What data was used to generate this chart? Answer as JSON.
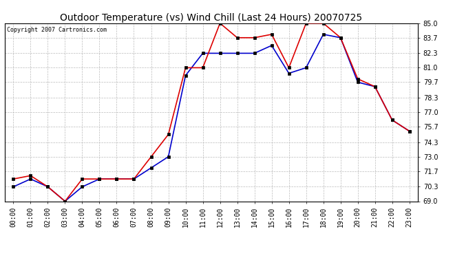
{
  "title": "Outdoor Temperature (vs) Wind Chill (Last 24 Hours) 20070725",
  "copyright": "Copyright 2007 Cartronics.com",
  "hours": [
    "00:00",
    "01:00",
    "02:00",
    "03:00",
    "04:00",
    "05:00",
    "06:00",
    "07:00",
    "08:00",
    "09:00",
    "10:00",
    "11:00",
    "12:00",
    "13:00",
    "14:00",
    "15:00",
    "16:00",
    "17:00",
    "18:00",
    "19:00",
    "20:00",
    "21:00",
    "22:00",
    "23:00"
  ],
  "outdoor_temp": [
    71.0,
    71.3,
    70.3,
    69.0,
    71.0,
    71.0,
    71.0,
    71.0,
    73.0,
    75.0,
    81.0,
    81.0,
    85.0,
    83.7,
    83.7,
    84.0,
    81.0,
    85.0,
    85.0,
    83.7,
    80.0,
    79.3,
    76.3,
    75.3
  ],
  "wind_chill": [
    70.3,
    71.0,
    70.3,
    69.0,
    70.3,
    71.0,
    71.0,
    71.0,
    72.0,
    73.0,
    80.3,
    82.3,
    82.3,
    82.3,
    82.3,
    83.0,
    80.5,
    81.0,
    84.0,
    83.7,
    79.7,
    79.3,
    76.3,
    75.3
  ],
  "ylim_min": 69.0,
  "ylim_max": 85.0,
  "yticks": [
    69.0,
    70.3,
    71.7,
    73.0,
    74.3,
    75.7,
    77.0,
    78.3,
    79.7,
    81.0,
    82.3,
    83.7,
    85.0
  ],
  "temp_color": "#dd0000",
  "windchill_color": "#0000cc",
  "bg_color": "#ffffff",
  "grid_color": "#bbbbbb",
  "marker": "s",
  "marker_size": 2.5,
  "line_width": 1.2,
  "title_fontsize": 10,
  "tick_fontsize": 7,
  "copyright_fontsize": 6
}
